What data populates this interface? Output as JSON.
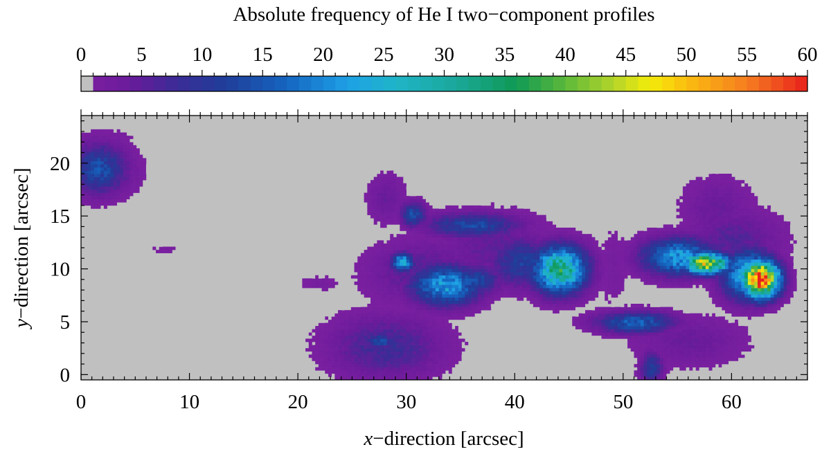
{
  "chart_data": {
    "type": "heatmap",
    "title": "Absolute frequency of He I two−component profiles",
    "xlabel": "x−direction  [arcsec]",
    "xlabel_var": "x",
    "xlabel_rest": "−direction  [arcsec]",
    "ylabel": "y−direction  [arcsec]",
    "ylabel_var": "y",
    "ylabel_rest": "−direction  [arcsec]",
    "xlim": [
      0,
      67
    ],
    "ylim": [
      -0.5,
      24.5
    ],
    "x_ticks": [
      "0",
      "10",
      "20",
      "30",
      "40",
      "50",
      "60"
    ],
    "x_tick_values": [
      0,
      10,
      20,
      30,
      40,
      50,
      60
    ],
    "y_ticks": [
      "0",
      "5",
      "10",
      "15",
      "20"
    ],
    "y_tick_values": [
      0,
      5,
      10,
      15,
      20
    ],
    "background_color": "#c0c0c0",
    "colorbar": {
      "range": [
        0,
        60
      ],
      "ticks": [
        "0",
        "5",
        "10",
        "15",
        "20",
        "25",
        "30",
        "35",
        "40",
        "45",
        "50",
        "55",
        "60"
      ],
      "tick_values": [
        0,
        5,
        10,
        15,
        20,
        25,
        30,
        35,
        40,
        45,
        50,
        55,
        60
      ],
      "zero_color": "#c0c0c0",
      "stops": [
        [
          1,
          "#7a1fa0"
        ],
        [
          4,
          "#6a1b9a"
        ],
        [
          8,
          "#3a2c96"
        ],
        [
          12,
          "#1f3e9a"
        ],
        [
          17,
          "#1565c0"
        ],
        [
          22,
          "#1ea0e6"
        ],
        [
          26,
          "#1fb4c8"
        ],
        [
          31,
          "#1aa89a"
        ],
        [
          36,
          "#109a54"
        ],
        [
          40,
          "#5cb83a"
        ],
        [
          44,
          "#b4d42a"
        ],
        [
          47,
          "#f4ec0a"
        ],
        [
          50,
          "#fbbd0f"
        ],
        [
          55,
          "#f57d20"
        ],
        [
          60,
          "#e8201c"
        ]
      ]
    },
    "regions": [
      {
        "x": 1.5,
        "y": 19.3,
        "sx": 1.8,
        "sy": 1.6,
        "peak": 14
      },
      {
        "x": 3.2,
        "y": 19.0,
        "sx": 1.7,
        "sy": 1.6,
        "peak": 4
      },
      {
        "x": 2.5,
        "y": 22.2,
        "sx": 1.8,
        "sy": 0.7,
        "peak": 2
      },
      {
        "x": 7.5,
        "y": 11.7,
        "sx": 1.2,
        "sy": 0.4,
        "peak": 1.5
      },
      {
        "x": 28.0,
        "y": 16.5,
        "sx": 1.2,
        "sy": 1.6,
        "peak": 4
      },
      {
        "x": 30.5,
        "y": 15.0,
        "sx": 0.8,
        "sy": 0.8,
        "peak": 14
      },
      {
        "x": 36.0,
        "y": 14.0,
        "sx": 3.0,
        "sy": 0.8,
        "peak": 13
      },
      {
        "x": 29.5,
        "y": 10.5,
        "sx": 0.7,
        "sy": 0.6,
        "peak": 24
      },
      {
        "x": 33.5,
        "y": 8.3,
        "sx": 2.2,
        "sy": 1.3,
        "peak": 22
      },
      {
        "x": 36.0,
        "y": 8.8,
        "sx": 1.8,
        "sy": 1.0,
        "peak": 13
      },
      {
        "x": 31.5,
        "y": 9.5,
        "sx": 3.5,
        "sy": 2.0,
        "peak": 6
      },
      {
        "x": 44.0,
        "y": 9.8,
        "sx": 1.7,
        "sy": 1.5,
        "peak": 34
      },
      {
        "x": 40.5,
        "y": 10.5,
        "sx": 2.0,
        "sy": 1.6,
        "peak": 12
      },
      {
        "x": 38.0,
        "y": 12.0,
        "sx": 3.5,
        "sy": 2.2,
        "peak": 5
      },
      {
        "x": 28.0,
        "y": 2.5,
        "sx": 3.5,
        "sy": 2.0,
        "peak": 8
      },
      {
        "x": 27.5,
        "y": 3.0,
        "sx": 1.0,
        "sy": 0.5,
        "peak": 14
      },
      {
        "x": 22.0,
        "y": 8.5,
        "sx": 1.5,
        "sy": 0.5,
        "peak": 2
      },
      {
        "x": 51.0,
        "y": 4.8,
        "sx": 2.5,
        "sy": 0.7,
        "peak": 16
      },
      {
        "x": 52.5,
        "y": 0.5,
        "sx": 0.7,
        "sy": 1.0,
        "peak": 12
      },
      {
        "x": 56.0,
        "y": 3.0,
        "sx": 3.5,
        "sy": 1.6,
        "peak": 4
      },
      {
        "x": 57.5,
        "y": 10.4,
        "sx": 1.5,
        "sy": 0.7,
        "peak": 46
      },
      {
        "x": 55.0,
        "y": 11.0,
        "sx": 2.3,
        "sy": 1.2,
        "peak": 22
      },
      {
        "x": 62.5,
        "y": 8.9,
        "sx": 1.2,
        "sy": 1.2,
        "peak": 59
      },
      {
        "x": 61.5,
        "y": 9.3,
        "sx": 1.7,
        "sy": 1.6,
        "peak": 26
      },
      {
        "x": 58.5,
        "y": 15.5,
        "sx": 2.2,
        "sy": 2.0,
        "peak": 4
      },
      {
        "x": 60.0,
        "y": 12.5,
        "sx": 3.0,
        "sy": 2.0,
        "peak": 6
      },
      {
        "x": 49.0,
        "y": 10.0,
        "sx": 1.0,
        "sy": 2.8,
        "peak": 2
      }
    ]
  }
}
